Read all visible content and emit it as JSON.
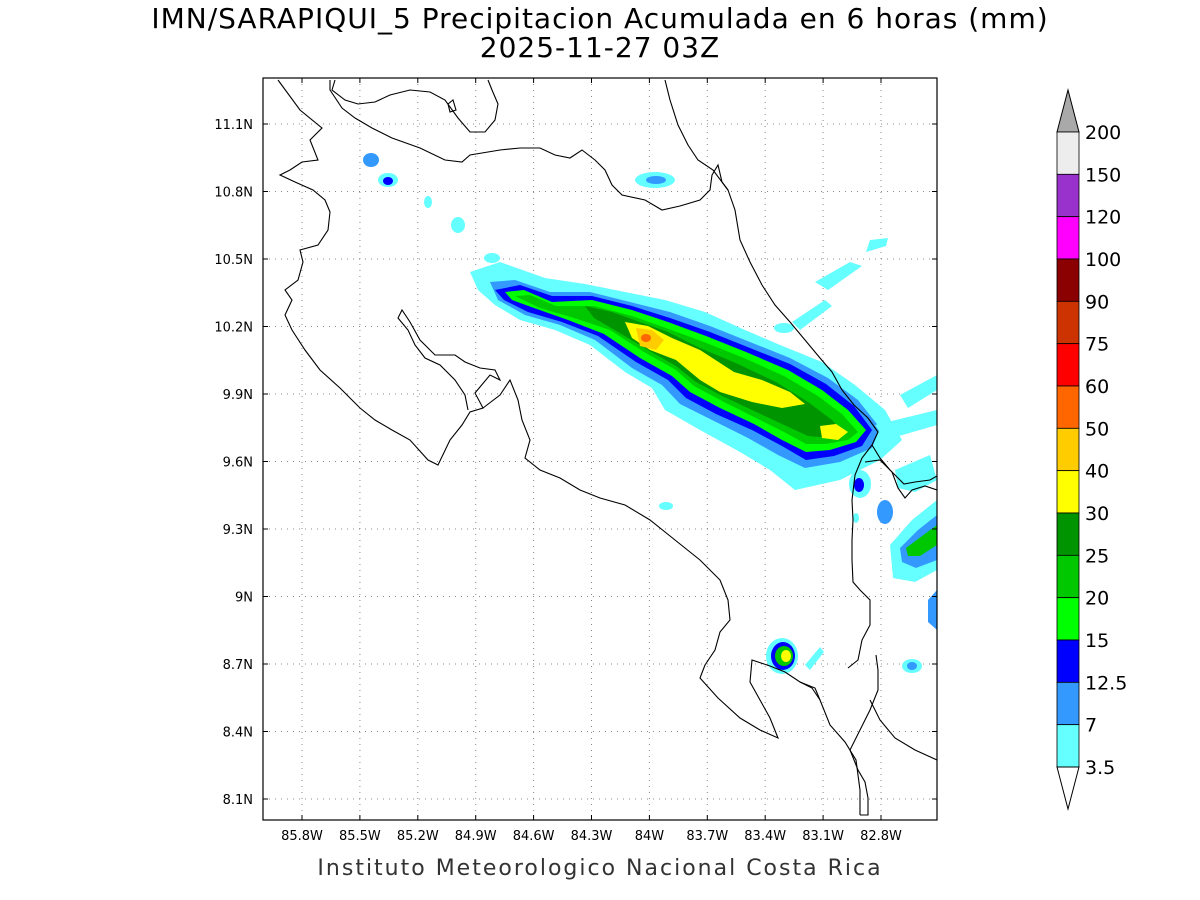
{
  "title": {
    "line1": "IMN/SARAPIQUI_5 Precipitacion Acumulada en 6 horas (mm)",
    "line2": "2025-11-27 03Z"
  },
  "footer": {
    "credit": "Instituto Meteorologico Nacional Costa Rica"
  },
  "map": {
    "lon_ticks": [
      "85.8W",
      "85.5W",
      "85.2W",
      "84.9W",
      "84.6W",
      "84.3W",
      "84W",
      "83.7W",
      "83.4W",
      "83.1W",
      "82.8W"
    ],
    "lat_ticks": [
      "11.1N",
      "10.8N",
      "10.5N",
      "10.2N",
      "9.9N",
      "9.6N",
      "9.3N",
      "9N",
      "8.7N",
      "8.4N",
      "8.1N"
    ],
    "grid": "dotted"
  },
  "legend": {
    "labels": [
      "200",
      "150",
      "120",
      "100",
      "90",
      "75",
      "60",
      "50",
      "40",
      "30",
      "25",
      "20",
      "15",
      "12.5",
      "7",
      "3.5"
    ],
    "colors": [
      "#ffffff",
      "#ededed",
      "#9932cc",
      "#ff00ff",
      "#8b0000",
      "#cd3300",
      "#ff0000",
      "#ff6600",
      "#ffcc00",
      "#ffff00",
      "#009400",
      "#00c800",
      "#00ff00",
      "#0000ff",
      "#3399ff",
      "#66ffff"
    ],
    "over_arrow_color": "#a9a9a9",
    "under_arrow_color": "#ffffff"
  }
}
